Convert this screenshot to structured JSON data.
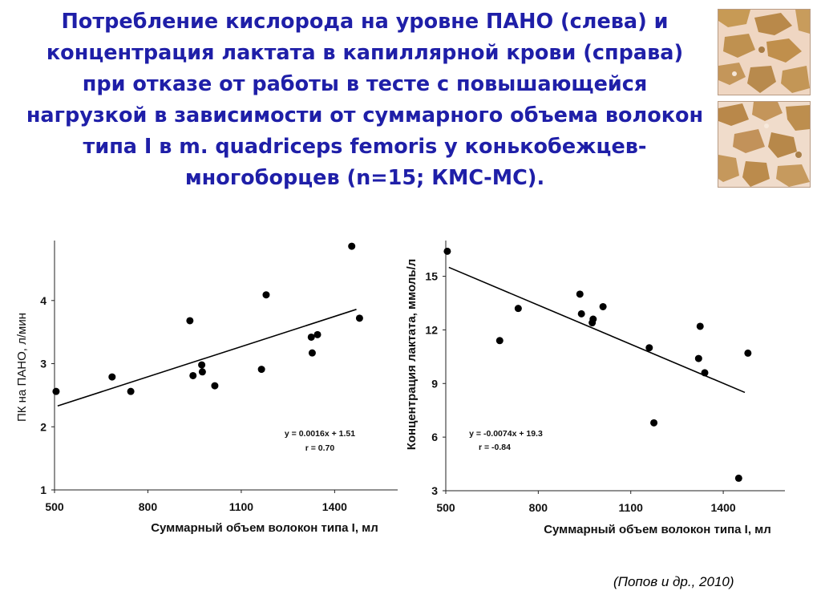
{
  "title": "Потребление кислорода на уровне ПАНО (слева) и концентрация лактата в капиллярной крови (справа) при отказе от работы в тесте с повышающейся нагрузкой в зависимости от суммарного объема волокон типа I в m. quadriceps femoris у конькобежцев-многоборцев (n=15; КМС-МС).",
  "citation": "(Попов и др., 2010)",
  "images": [
    {
      "name": "muscle-fiber-stain-micrograph-1"
    },
    {
      "name": "muscle-fiber-stain-micrograph-2"
    }
  ],
  "chart_data": [
    {
      "type": "scatter",
      "title": "",
      "xlabel": "Суммарный объем волокон типа I, мл",
      "ylabel": "ПК на ПАНО, л/мин",
      "xlim": [
        500,
        1600
      ],
      "ylim": [
        1,
        4.95
      ],
      "xticks": [
        500,
        800,
        1100,
        1400
      ],
      "yticks": [
        1,
        2,
        3,
        4
      ],
      "grid": false,
      "points": [
        {
          "x": 505,
          "y": 2.56
        },
        {
          "x": 685,
          "y": 2.79
        },
        {
          "x": 745,
          "y": 2.56
        },
        {
          "x": 935,
          "y": 3.68
        },
        {
          "x": 945,
          "y": 2.81
        },
        {
          "x": 973,
          "y": 2.98
        },
        {
          "x": 975,
          "y": 2.87
        },
        {
          "x": 1015,
          "y": 2.65
        },
        {
          "x": 1165,
          "y": 2.91
        },
        {
          "x": 1180,
          "y": 4.09
        },
        {
          "x": 1325,
          "y": 3.42
        },
        {
          "x": 1328,
          "y": 3.17
        },
        {
          "x": 1345,
          "y": 3.46
        },
        {
          "x": 1455,
          "y": 4.86
        },
        {
          "x": 1480,
          "y": 3.72
        }
      ],
      "trendline": {
        "x1": 510,
        "y1": 2.33,
        "x2": 1470,
        "y2": 3.86
      },
      "annotations": [
        "y = 0.0016x + 1.51",
        "r = 0.70"
      ]
    },
    {
      "type": "scatter",
      "title": "",
      "xlabel": "Суммарный объем волокон типа I, мл",
      "ylabel": "Концентрация лактата, ммоль/л",
      "xlim": [
        500,
        1600
      ],
      "ylim": [
        3,
        17
      ],
      "xticks": [
        500,
        800,
        1100,
        1400
      ],
      "yticks": [
        3,
        6,
        9,
        12,
        15
      ],
      "grid": false,
      "points": [
        {
          "x": 505,
          "y": 16.4
        },
        {
          "x": 675,
          "y": 11.4
        },
        {
          "x": 735,
          "y": 13.2
        },
        {
          "x": 935,
          "y": 14.0
        },
        {
          "x": 940,
          "y": 12.9
        },
        {
          "x": 975,
          "y": 12.4
        },
        {
          "x": 978,
          "y": 12.6
        },
        {
          "x": 1010,
          "y": 13.3
        },
        {
          "x": 1160,
          "y": 11.0
        },
        {
          "x": 1175,
          "y": 6.8
        },
        {
          "x": 1320,
          "y": 10.4
        },
        {
          "x": 1325,
          "y": 12.2
        },
        {
          "x": 1340,
          "y": 9.6
        },
        {
          "x": 1450,
          "y": 3.7
        },
        {
          "x": 1480,
          "y": 10.7
        }
      ],
      "trendline": {
        "x1": 510,
        "y1": 15.5,
        "x2": 1470,
        "y2": 8.5
      },
      "annotations": [
        "y = -0.0074x + 19.3",
        "r = -0.84"
      ]
    }
  ]
}
